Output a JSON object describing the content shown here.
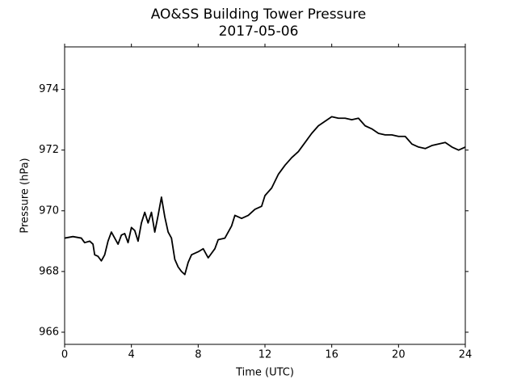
{
  "chart_data": {
    "type": "line",
    "title": "AO&SS Building Tower Pressure",
    "subtitle": "2017-05-06",
    "x_label": "Time (UTC)",
    "y_label": "Pressure (hPa)",
    "x": [
      0,
      0.5,
      1,
      1.2,
      1.5,
      1.7,
      1.8,
      2.0,
      2.2,
      2.4,
      2.6,
      2.8,
      3.0,
      3.2,
      3.4,
      3.6,
      3.8,
      4.0,
      4.2,
      4.4,
      4.6,
      4.8,
      5.0,
      5.2,
      5.4,
      5.6,
      5.8,
      6.0,
      6.2,
      6.4,
      6.6,
      6.8,
      7.0,
      7.2,
      7.4,
      7.6,
      8.0,
      8.3,
      8.6,
      9.0,
      9.2,
      9.6,
      10.0,
      10.2,
      10.6,
      11.0,
      11.4,
      11.8,
      12.0,
      12.4,
      12.8,
      13.2,
      13.6,
      14.0,
      14.4,
      14.8,
      15.2,
      15.6,
      16.0,
      16.4,
      16.8,
      17.2,
      17.6,
      18.0,
      18.4,
      18.8,
      19.2,
      19.6,
      20.0,
      20.4,
      20.8,
      21.2,
      21.6,
      22.0,
      22.4,
      22.8,
      23.2,
      23.6,
      24.0
    ],
    "series": [
      {
        "name": "Pressure",
        "color": "#000000",
        "values": [
          969.1,
          969.15,
          969.1,
          968.95,
          969.0,
          968.9,
          968.55,
          968.5,
          968.35,
          968.55,
          969.0,
          969.3,
          969.1,
          968.9,
          969.2,
          969.25,
          968.95,
          969.45,
          969.35,
          969.0,
          969.6,
          969.95,
          969.6,
          969.95,
          969.3,
          969.85,
          970.45,
          969.8,
          969.3,
          969.1,
          968.4,
          968.15,
          968.0,
          967.9,
          968.3,
          968.55,
          968.65,
          968.75,
          968.45,
          968.75,
          969.05,
          969.1,
          969.5,
          969.85,
          969.75,
          969.85,
          970.05,
          970.15,
          970.5,
          970.75,
          971.2,
          971.5,
          971.75,
          971.95,
          972.25,
          972.55,
          972.8,
          972.95,
          973.1,
          973.05,
          973.05,
          973.0,
          973.05,
          972.8,
          972.7,
          972.55,
          972.5,
          972.5,
          972.45,
          972.45,
          972.2,
          972.1,
          972.05,
          972.15,
          972.2,
          972.25,
          972.1,
          972.0,
          972.1
        ]
      }
    ],
    "xlim": [
      0,
      24
    ],
    "xticks": [
      0,
      4,
      8,
      12,
      16,
      20,
      24
    ],
    "ylim": [
      965.6,
      975.4
    ],
    "yticks": [
      966,
      968,
      970,
      972,
      974
    ],
    "grid": false
  }
}
